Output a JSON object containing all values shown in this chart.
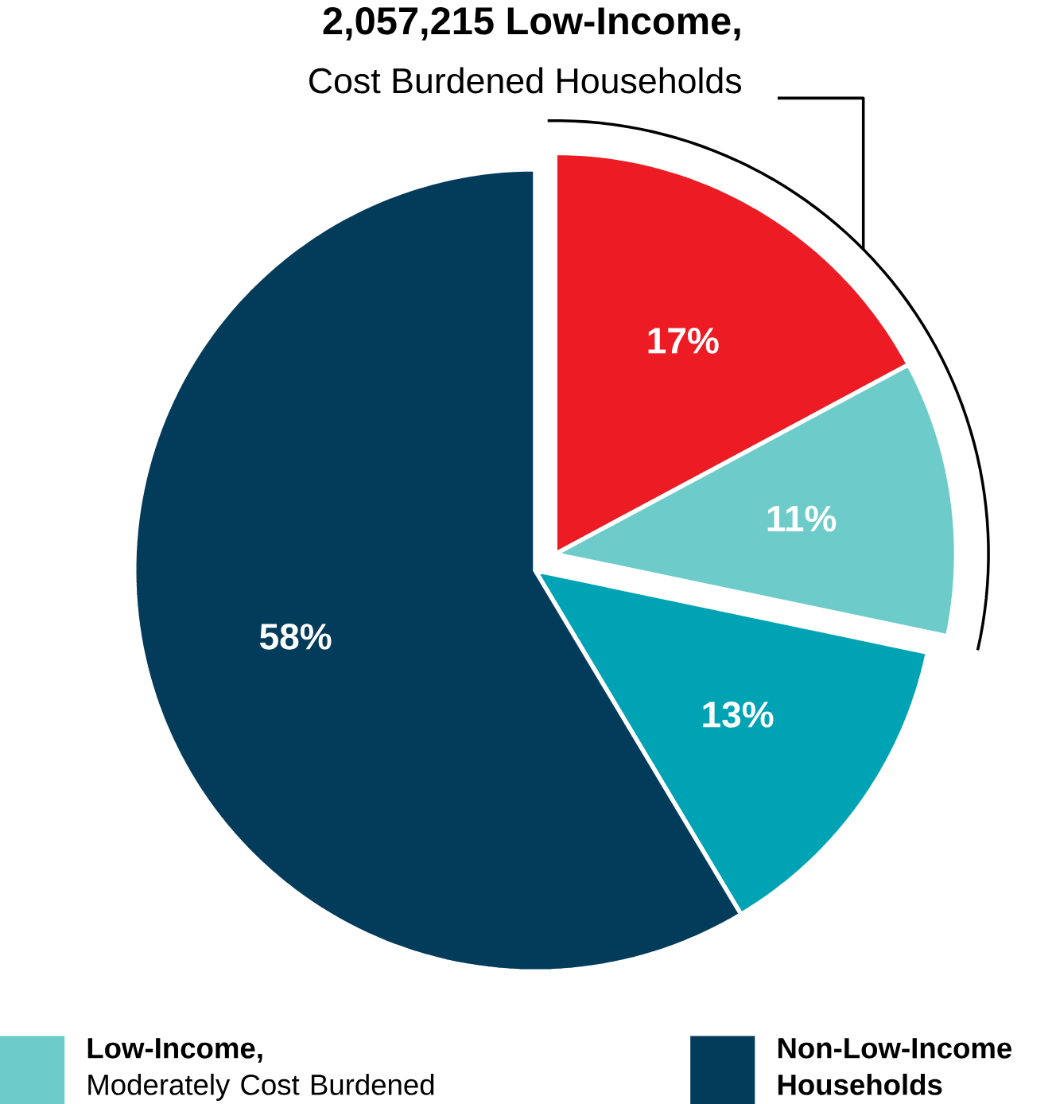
{
  "chart_data": {
    "type": "pie",
    "title": "2,057,215 Low-Income,",
    "subtitle": "Cost Burdened Households",
    "categories": [
      null,
      "**Low-Income,** Moderately Cost Burdened",
      null,
      "Non-Low-Income Households"
    ],
    "values": [
      17,
      11,
      13,
      58
    ],
    "colors": [
      "#ed1c24",
      "#6dcbca",
      "#00a3b4",
      "#033c5a"
    ],
    "value_labels": [
      "17%",
      "11%",
      "13%",
      "58%"
    ],
    "legend": "bottom"
  }
}
